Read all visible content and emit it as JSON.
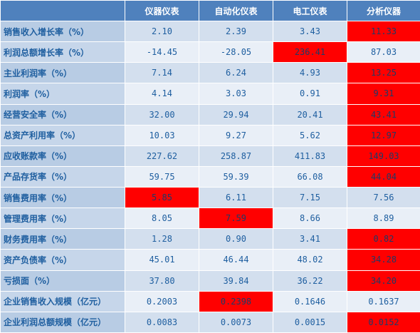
{
  "header": {
    "corner": "",
    "columns": [
      "仪器仪表",
      "自动化仪表",
      "电工仪表",
      "分析仪器"
    ]
  },
  "highlight_color": "#ff0000",
  "header_color": "#4f81bd",
  "rows": [
    {
      "label": "销售收入增长率（%）",
      "values": [
        "2.10",
        "2.39",
        "3.43",
        "11.33"
      ],
      "highlight": [
        false,
        false,
        false,
        true
      ]
    },
    {
      "label": "利润总额增长率（%）",
      "values": [
        "-14.45",
        "-28.05",
        "236.41",
        "87.03"
      ],
      "highlight": [
        false,
        false,
        true,
        false
      ]
    },
    {
      "label": "主业利润率（%）",
      "values": [
        "7.14",
        "6.24",
        "4.93",
        "13.25"
      ],
      "highlight": [
        false,
        false,
        false,
        true
      ]
    },
    {
      "label": "利润率（%）",
      "values": [
        "4.14",
        "3.03",
        "0.91",
        "9.31"
      ],
      "highlight": [
        false,
        false,
        false,
        true
      ]
    },
    {
      "label": "经营安全率（%）",
      "values": [
        "32.00",
        "29.94",
        "20.41",
        "43.41"
      ],
      "highlight": [
        false,
        false,
        false,
        true
      ]
    },
    {
      "label": "总资产利用率（%）",
      "values": [
        "10.03",
        "9.27",
        "5.62",
        "12.97"
      ],
      "highlight": [
        false,
        false,
        false,
        true
      ]
    },
    {
      "label": "应收账款率（%）",
      "values": [
        "227.62",
        "258.87",
        "411.83",
        "149.03"
      ],
      "highlight": [
        false,
        false,
        false,
        true
      ]
    },
    {
      "label": "产品存货率（%）",
      "values": [
        "59.75",
        "59.39",
        "66.08",
        "44.04"
      ],
      "highlight": [
        false,
        false,
        false,
        true
      ]
    },
    {
      "label": "销售费用率（%）",
      "values": [
        "5.85",
        "6.11",
        "7.15",
        "7.56"
      ],
      "highlight": [
        true,
        false,
        false,
        false
      ]
    },
    {
      "label": "管理费用率（%）",
      "values": [
        "8.05",
        "7.59",
        "8.66",
        "8.89"
      ],
      "highlight": [
        false,
        true,
        false,
        false
      ]
    },
    {
      "label": "财务费用率（%）",
      "values": [
        "1.28",
        "0.90",
        "3.41",
        "0.82"
      ],
      "highlight": [
        false,
        false,
        false,
        true
      ]
    },
    {
      "label": "资产负债率（%）",
      "values": [
        "45.01",
        "46.44",
        "48.02",
        "34.28"
      ],
      "highlight": [
        false,
        false,
        false,
        true
      ]
    },
    {
      "label": "亏损面（%）",
      "values": [
        "37.80",
        "39.84",
        "36.22",
        "34.20"
      ],
      "highlight": [
        false,
        false,
        false,
        true
      ]
    },
    {
      "label": "企业销售收入规模（亿元）",
      "values": [
        "0.2003",
        "0.2398",
        "0.1646",
        "0.1637"
      ],
      "highlight": [
        false,
        true,
        false,
        false
      ]
    },
    {
      "label": "企业利润总额规模（亿元）",
      "values": [
        "0.0083",
        "0.0073",
        "0.0015",
        "0.0152"
      ],
      "highlight": [
        false,
        false,
        false,
        true
      ]
    }
  ]
}
